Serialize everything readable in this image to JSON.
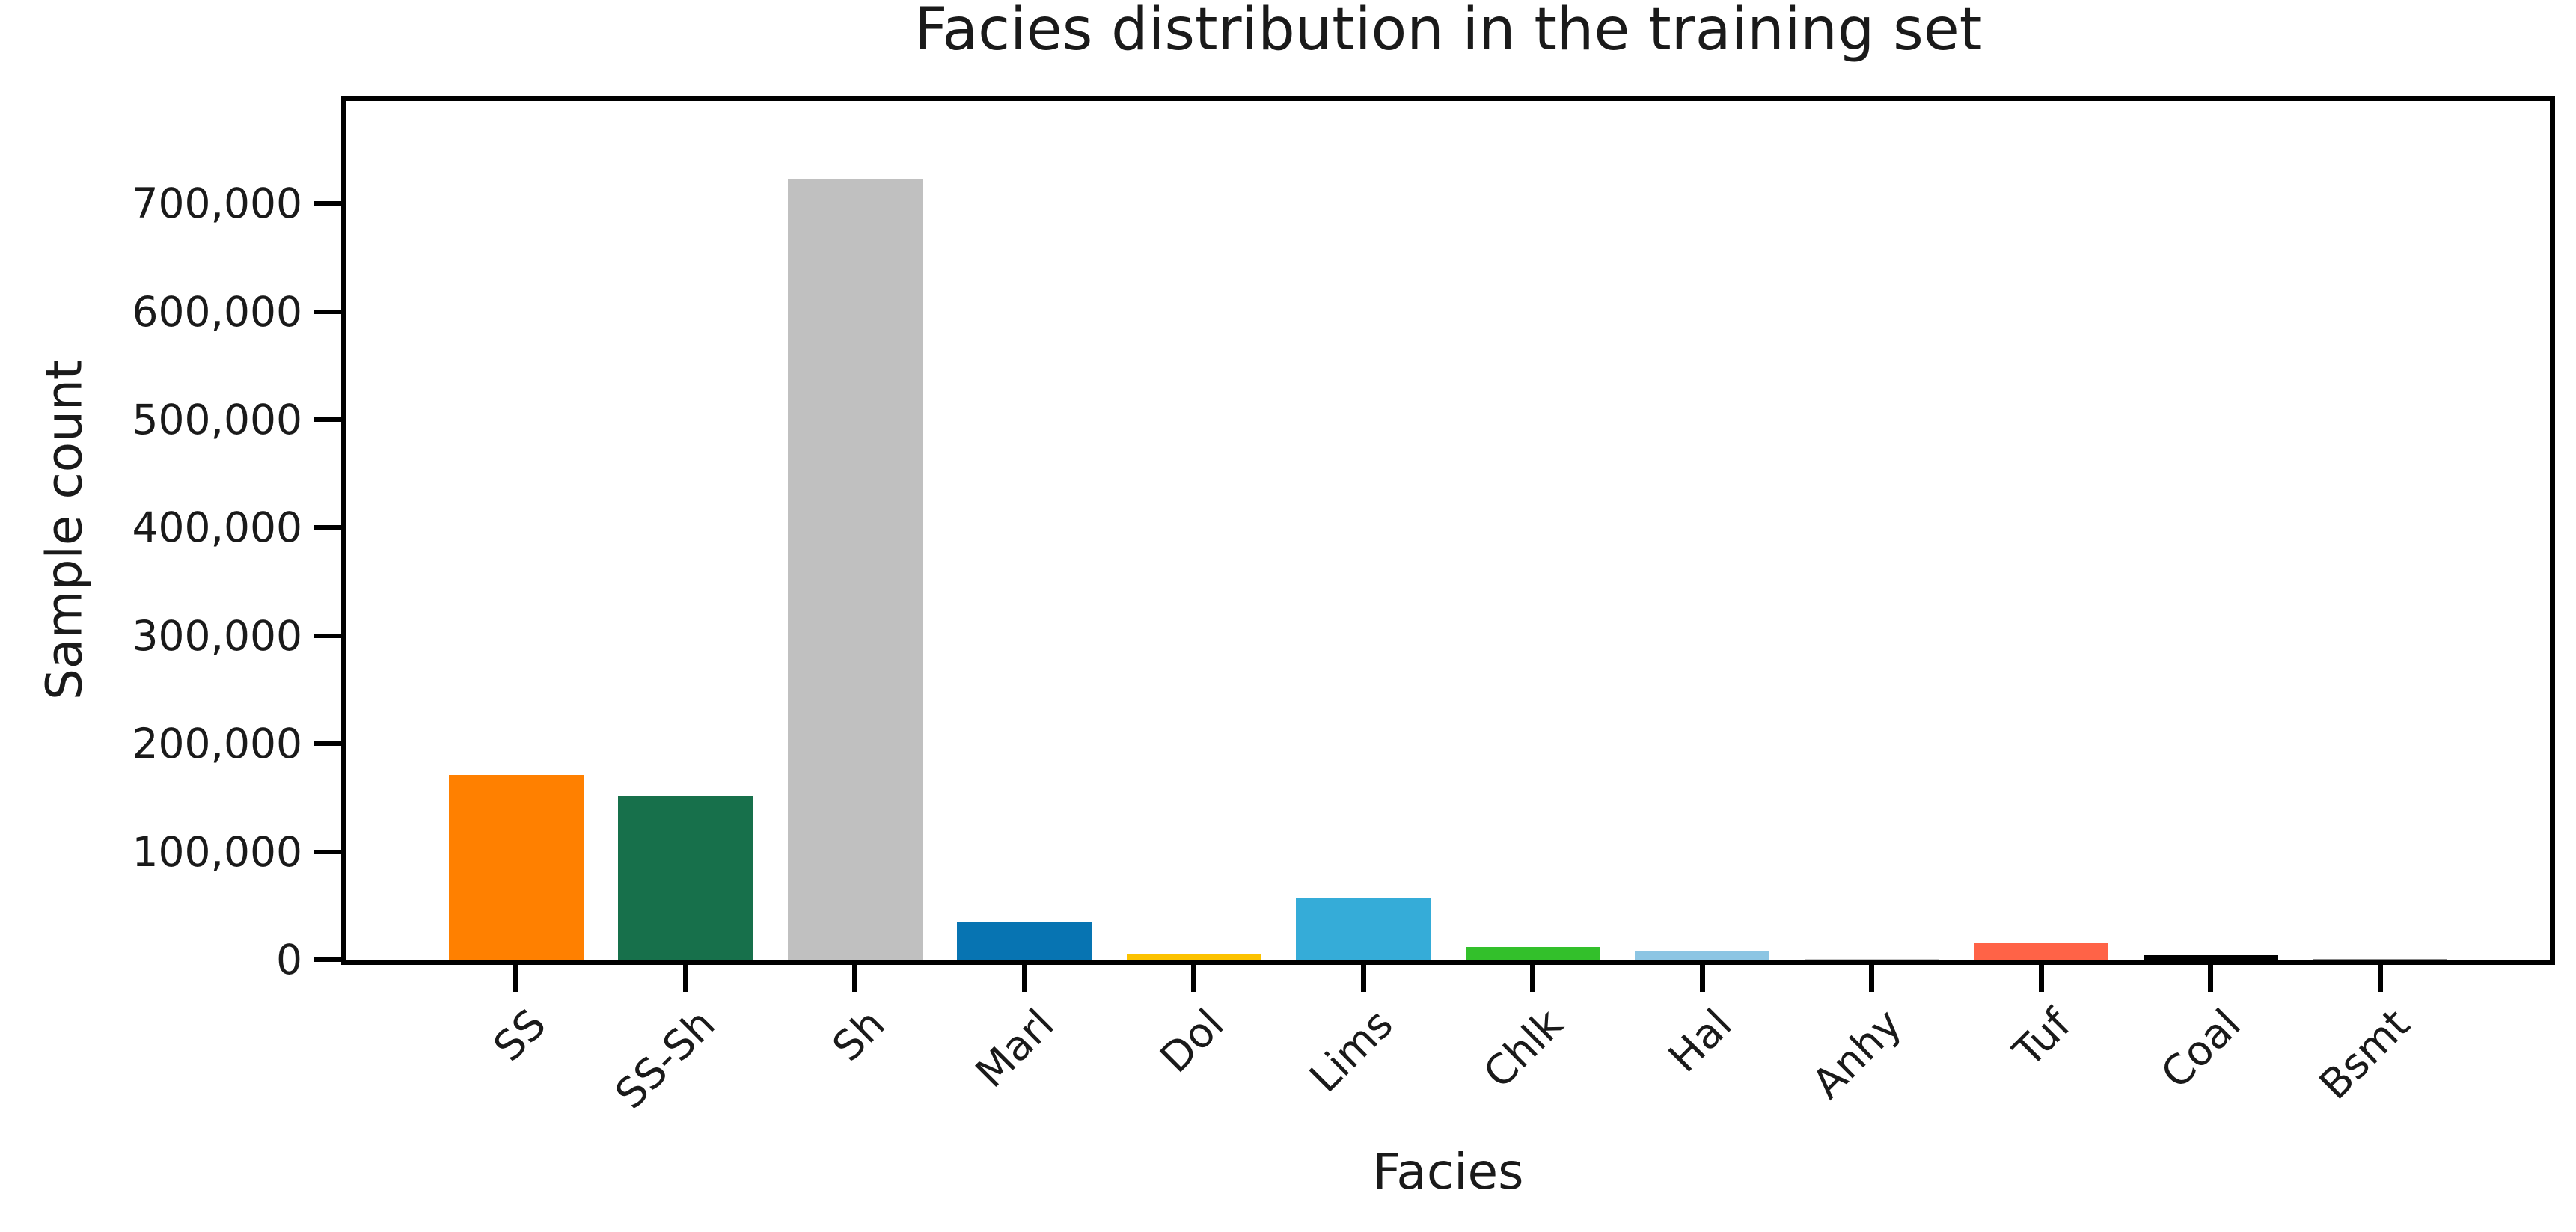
{
  "figure": {
    "background": "#ffffff",
    "axis_color": "#000000",
    "text_color": "#1a1a1a"
  },
  "chart_data": {
    "type": "bar",
    "title": "Facies distribution in the training set",
    "xlabel": "Facies",
    "ylabel": "Sample count",
    "categories": [
      "SS",
      "SS-Sh",
      "Sh",
      "Marl",
      "Dol",
      "Lims",
      "Chlk",
      "Hal",
      "Anhy",
      "Tuf",
      "Coal",
      "Bsmt"
    ],
    "values": [
      171000,
      152000,
      723000,
      35000,
      5000,
      57000,
      12000,
      8000,
      1000,
      16000,
      4000,
      500
    ],
    "bar_colors": [
      "#ff8000",
      "#17704b",
      "#c0c0c0",
      "#0774b2",
      "#fcc200",
      "#35acd8",
      "#33c02b",
      "#8cc5e3",
      "#c4c4c4",
      "#ff6347",
      "#000000",
      "#8a8a8a"
    ],
    "ylim": [
      0,
      795000
    ],
    "yticks": [
      0,
      100000,
      200000,
      300000,
      400000,
      500000,
      600000,
      700000
    ],
    "ytick_labels": [
      "0",
      "100,000",
      "200,000",
      "300,000",
      "400,000",
      "500,000",
      "600,000",
      "700,000"
    ],
    "x_tick_rotation_deg": 45,
    "grid": false,
    "legend": "none"
  }
}
